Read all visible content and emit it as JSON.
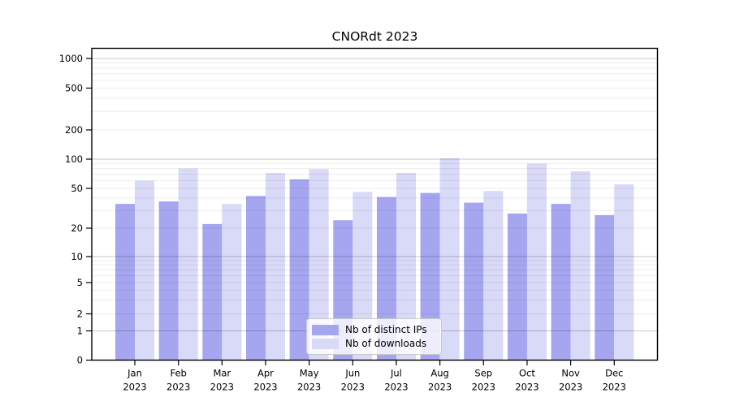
{
  "title": "CNORdt 2023",
  "chart_data": {
    "type": "bar",
    "title": "CNORdt 2023",
    "xlabel": "",
    "ylabel": "",
    "yscale": "symlog",
    "ylim": [
      0,
      1270
    ],
    "grid": true,
    "legend_position": "lower center",
    "y_ticks": [
      0,
      1,
      2,
      5,
      10,
      20,
      50,
      100,
      200,
      500,
      1000
    ],
    "categories": [
      "Jan 2023",
      "Feb 2023",
      "Mar 2023",
      "Apr 2023",
      "May 2023",
      "Jun 2023",
      "Jul 2023",
      "Aug 2023",
      "Sep 2023",
      "Oct 2023",
      "Nov 2023",
      "Dec 2023"
    ],
    "series": [
      {
        "name": "Nb of distinct IPs",
        "color": "#a5a5f0",
        "values": [
          35,
          37,
          22,
          42,
          62,
          24,
          41,
          45,
          36,
          28,
          35,
          27
        ]
      },
      {
        "name": "Nb of downloads",
        "color": "#d9d9f8",
        "values": [
          60,
          80,
          35,
          72,
          79,
          46,
          72,
          102,
          47,
          90,
          75,
          55
        ]
      }
    ]
  }
}
